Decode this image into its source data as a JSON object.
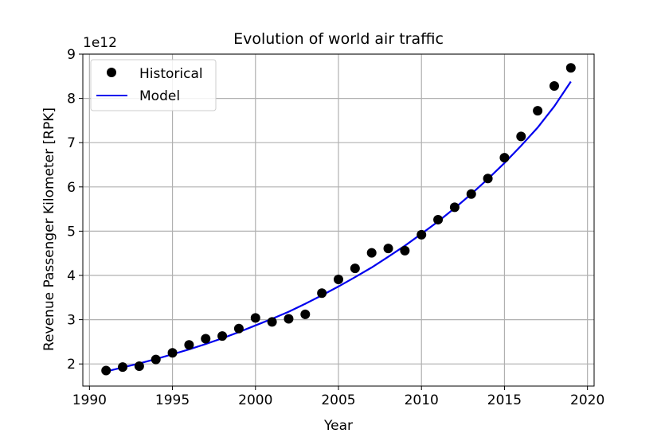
{
  "chart_data": {
    "type": "scatter",
    "title": "Evolution of world air traffic",
    "xlabel": "Year",
    "ylabel": "Revenue Passenger Kilometer [RPK]",
    "y_offset_label": "1e12",
    "xlim": [
      1989.6,
      2020.4
    ],
    "ylim": [
      1.5,
      9.0
    ],
    "xticks": [
      1990,
      1995,
      2000,
      2005,
      2010,
      2015,
      2020
    ],
    "yticks": [
      2,
      3,
      4,
      5,
      6,
      7,
      8,
      9
    ],
    "grid": true,
    "legend_position": "top-left",
    "series": [
      {
        "name": "Historical",
        "kind": "markers",
        "color": "#000000",
        "x": [
          1991,
          1992,
          1993,
          1994,
          1995,
          1996,
          1997,
          1998,
          1999,
          2000,
          2001,
          2002,
          2003,
          2004,
          2005,
          2006,
          2007,
          2008,
          2009,
          2010,
          2011,
          2012,
          2013,
          2014,
          2015,
          2016,
          2017,
          2018,
          2019
        ],
        "y": [
          1.85,
          1.93,
          1.95,
          2.1,
          2.25,
          2.43,
          2.57,
          2.63,
          2.8,
          3.04,
          2.95,
          3.02,
          3.12,
          3.6,
          3.91,
          4.16,
          4.51,
          4.61,
          4.56,
          4.92,
          5.26,
          5.54,
          5.84,
          6.19,
          6.66,
          7.14,
          7.72,
          8.28,
          8.69
        ]
      },
      {
        "name": "Model",
        "kind": "line",
        "color": "#0000ee",
        "x": [
          1991,
          1992,
          1993,
          1994,
          1995,
          1996,
          1997,
          1998,
          1999,
          2000,
          2001,
          2002,
          2003,
          2004,
          2005,
          2006,
          2007,
          2008,
          2009,
          2010,
          2011,
          2012,
          2013,
          2014,
          2015,
          2016,
          2017,
          2018,
          2019
        ],
        "y": [
          1.83,
          1.92,
          2.01,
          2.11,
          2.22,
          2.33,
          2.45,
          2.58,
          2.72,
          2.87,
          3.02,
          3.18,
          3.36,
          3.55,
          3.75,
          3.96,
          4.18,
          4.42,
          4.67,
          4.94,
          5.22,
          5.52,
          5.84,
          6.18,
          6.54,
          6.93,
          7.34,
          7.82,
          8.38
        ]
      }
    ]
  }
}
